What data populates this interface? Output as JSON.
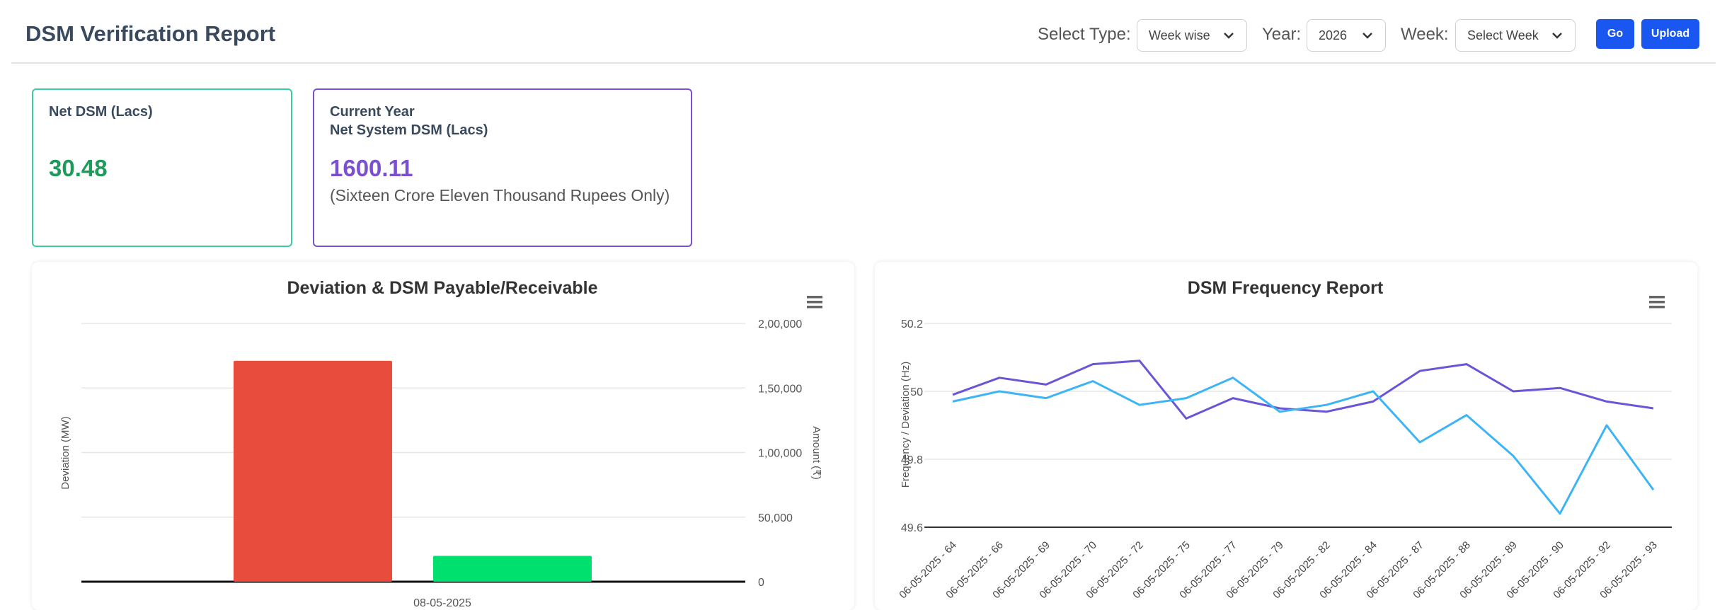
{
  "header": {
    "title": "DSM Verification Report",
    "select_type_label": "Select Type:",
    "select_type_value": "Week wise",
    "year_label": "Year:",
    "year_value": "2026",
    "week_label": "Week:",
    "week_value": "Select Week",
    "go_label": "Go",
    "upload_label": "Upload"
  },
  "cards": {
    "net_dsm": {
      "label": "Net DSM (Lacs)",
      "value": "30.48",
      "color": "#1e9a5a"
    },
    "system_dsm": {
      "label_line1": "Current Year",
      "label_line2": "Net System DSM (Lacs)",
      "value": "1600.11",
      "sub": "(Sixteen Crore Eleven Thousand Rupees Only)",
      "color": "#7b4fd0"
    }
  },
  "chart_data": [
    {
      "type": "bar",
      "title": "Deviation & DSM Payable/Receivable",
      "ylabel": "Deviation (MW)",
      "ylabel_right": "Amount (₹)",
      "categories": [
        "08-05-2025"
      ],
      "right_axis_ticks": [
        "0",
        "50,000",
        "1,00,000",
        "1,50,000",
        "2,00,000"
      ],
      "right_ylim": [
        0,
        200000
      ],
      "series": [
        {
          "values": [
            171000
          ],
          "color": "#e74c3c"
        },
        {
          "values": [
            20000
          ],
          "color": "#00e06e"
        }
      ],
      "grid": true
    },
    {
      "type": "line",
      "title": "DSM Frequency Report",
      "ylabel": "Frequency / Deviation (Hz)",
      "ylim": [
        49.6,
        50.2
      ],
      "y_ticks": [
        "49.6",
        "49.8",
        "50",
        "50.2"
      ],
      "categories": [
        "06-05-2025 - 64",
        "06-05-2025 - 66",
        "06-05-2025 - 69",
        "06-05-2025 - 70",
        "06-05-2025 - 72",
        "06-05-2025 - 75",
        "06-05-2025 - 77",
        "06-05-2025 - 79",
        "06-05-2025 - 82",
        "06-05-2025 - 84",
        "06-05-2025 - 87",
        "06-05-2025 - 88",
        "06-05-2025 - 89",
        "06-05-2025 - 90",
        "06-05-2025 - 92",
        "06-05-2025 - 93"
      ],
      "series": [
        {
          "color": "#6a55d6",
          "values": [
            49.99,
            50.04,
            50.02,
            50.08,
            50.09,
            49.92,
            49.98,
            49.95,
            49.94,
            49.97,
            50.06,
            50.08,
            50.0,
            50.01,
            49.97,
            49.95
          ]
        },
        {
          "color": "#3db4f5",
          "values": [
            49.97,
            50.0,
            49.98,
            50.03,
            49.96,
            49.98,
            50.04,
            49.94,
            49.96,
            50.0,
            49.85,
            49.93,
            49.81,
            49.64,
            49.9,
            49.71
          ]
        }
      ],
      "grid": true
    }
  ]
}
